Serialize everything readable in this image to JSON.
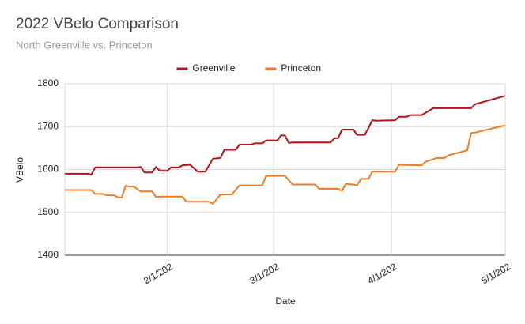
{
  "chart_data": {
    "type": "line",
    "title": "2022 VBelo Comparison",
    "subtitle": "North Greenville vs. Princeton",
    "x_label": "Date",
    "y_label": "VBelo",
    "legend": "top",
    "grid": true,
    "xlim": [
      5,
      121
    ],
    "xticks": [
      {
        "value": 32,
        "label": "2/1/202"
      },
      {
        "value": 60,
        "label": "3/1/202"
      },
      {
        "value": 91,
        "label": "4/1/202"
      },
      {
        "value": 121,
        "label": "5/1/202"
      }
    ],
    "ylim": [
      1400,
      1800
    ],
    "yticks": [
      1400,
      1500,
      1600,
      1700,
      1800
    ],
    "series": [
      {
        "name": "Greenville",
        "color": "#b7131a",
        "x": [
          5,
          11,
          12,
          13,
          24,
          25,
          26,
          28,
          29,
          30,
          32,
          33,
          35,
          36,
          38,
          40,
          42,
          44,
          46,
          47,
          50,
          51,
          54,
          55,
          57,
          58,
          61,
          62,
          63,
          64,
          65,
          75,
          76,
          77,
          78,
          81,
          82,
          84,
          85,
          86,
          87,
          92,
          93,
          95,
          96,
          99,
          102,
          112,
          113,
          121
        ],
        "values": [
          1590,
          1590,
          1588,
          1605,
          1605,
          1606,
          1593,
          1593,
          1606,
          1597,
          1597,
          1605,
          1605,
          1610,
          1611,
          1595,
          1595,
          1625,
          1627,
          1646,
          1646,
          1658,
          1658,
          1661,
          1661,
          1668,
          1668,
          1680,
          1679,
          1662,
          1663,
          1663,
          1673,
          1673,
          1693,
          1693,
          1681,
          1681,
          1697,
          1715,
          1714,
          1715,
          1723,
          1723,
          1727,
          1727,
          1743,
          1743,
          1752,
          1772
        ]
      },
      {
        "name": "Princeton",
        "color": "#f07b22",
        "x": [
          5,
          12,
          13,
          15,
          16,
          18,
          19,
          20,
          21,
          22,
          23,
          25,
          28,
          29,
          31,
          36,
          37,
          43,
          44,
          46,
          49,
          51,
          57,
          58,
          63,
          65,
          71,
          72,
          77,
          78,
          79,
          81,
          82,
          83,
          85,
          86,
          92,
          93,
          99,
          100,
          103,
          105,
          106,
          109,
          111,
          112,
          113,
          121
        ],
        "values": [
          1552,
          1552,
          1543,
          1543,
          1540,
          1540,
          1535,
          1535,
          1562,
          1560,
          1561,
          1549,
          1549,
          1536,
          1537,
          1537,
          1525,
          1525,
          1520,
          1542,
          1542,
          1563,
          1563,
          1585,
          1585,
          1565,
          1565,
          1555,
          1555,
          1550,
          1566,
          1565,
          1563,
          1578,
          1578,
          1595,
          1595,
          1611,
          1610,
          1618,
          1627,
          1627,
          1633,
          1640,
          1645,
          1685,
          1686,
          1703
        ]
      }
    ]
  }
}
